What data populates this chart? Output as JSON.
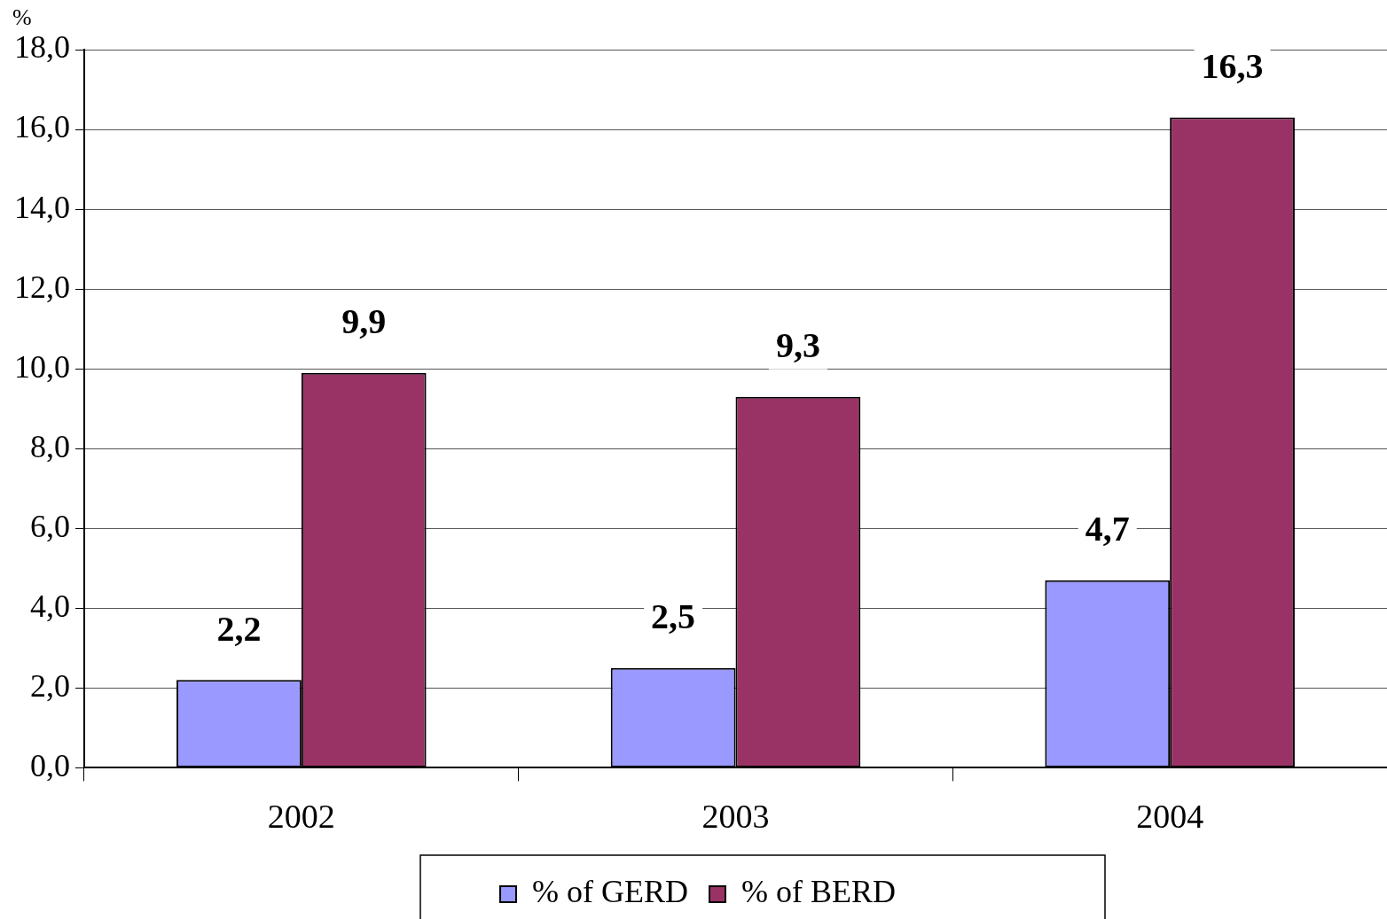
{
  "chart_data": {
    "type": "bar",
    "ylabel": "%",
    "categories": [
      "2002",
      "2003",
      "2004"
    ],
    "series": [
      {
        "name": "% of GERD",
        "color": "#9999ff",
        "values": [
          2.2,
          2.5,
          4.7
        ],
        "value_labels": [
          "2,2",
          "2,5",
          "4,7"
        ]
      },
      {
        "name": "% of BERD",
        "color": "#993366",
        "values": [
          9.9,
          9.3,
          16.3
        ],
        "value_labels": [
          "9,9",
          "9,3",
          "16,3"
        ]
      }
    ],
    "ylim": [
      0,
      18
    ],
    "yticks": [
      {
        "value": 0,
        "label": "0,0"
      },
      {
        "value": 2,
        "label": "2,0"
      },
      {
        "value": 4,
        "label": "4,0"
      },
      {
        "value": 6,
        "label": "6,0"
      },
      {
        "value": 8,
        "label": "8,0"
      },
      {
        "value": 10,
        "label": "10,0"
      },
      {
        "value": 12,
        "label": "12,0"
      },
      {
        "value": 14,
        "label": "14,0"
      },
      {
        "value": 16,
        "label": "16,0"
      },
      {
        "value": 18,
        "label": "18,0"
      }
    ],
    "grid": "y",
    "legend": "bottom"
  }
}
